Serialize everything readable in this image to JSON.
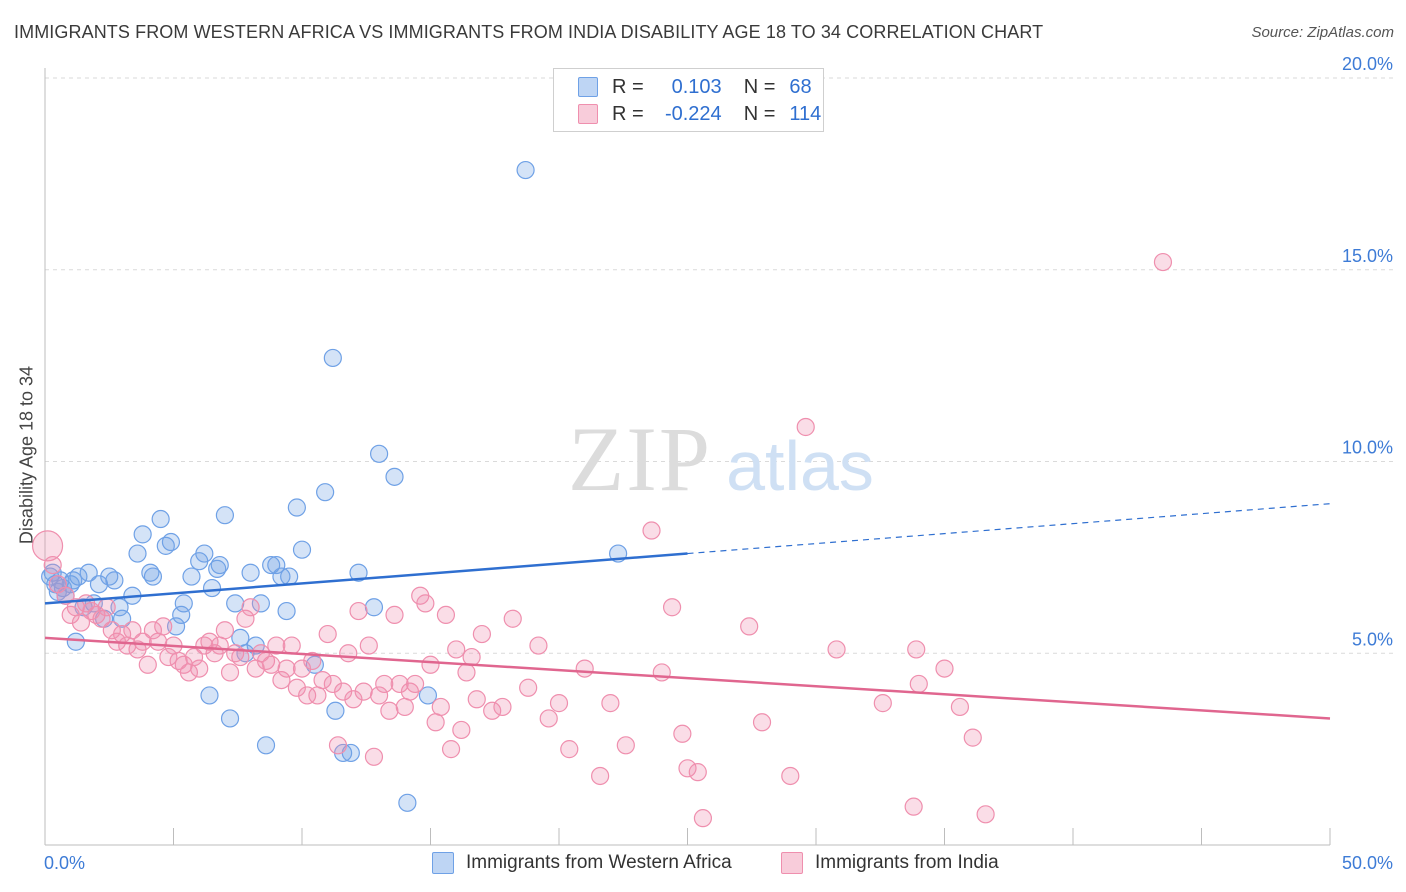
{
  "title": "IMMIGRANTS FROM WESTERN AFRICA VS IMMIGRANTS FROM INDIA DISABILITY AGE 18 TO 34 CORRELATION CHART",
  "source": "Source: ZipAtlas.com",
  "watermark": {
    "zip": "ZIP",
    "atlas": "atlas"
  },
  "legend": {
    "rows": [
      {
        "r_label": "R =",
        "r_value": "0.103",
        "n_label": "N =",
        "n_value": "68",
        "color": "#6fa1e6"
      },
      {
        "r_label": "R =",
        "r_value": "-0.224",
        "n_label": "N =",
        "n_value": "114",
        "color": "#ef8fae"
      }
    ]
  },
  "chart_data": {
    "type": "scatter",
    "title": "IMMIGRANTS FROM WESTERN AFRICA VS IMMIGRANTS FROM INDIA DISABILITY AGE 18 TO 34 CORRELATION CHART",
    "xlabel": "",
    "ylabel": "Disability Age 18 to 34",
    "xlim": [
      0,
      50
    ],
    "ylim": [
      0,
      20
    ],
    "x_tick_labels": [
      "0.0%",
      "50.0%"
    ],
    "y_ticks": [
      5,
      10,
      15,
      20
    ],
    "y_tick_labels": [
      "5.0%",
      "10.0%",
      "15.0%",
      "20.0%"
    ],
    "grid": true,
    "legend_position": "bottom",
    "series": [
      {
        "name": "Immigrants from Western Africa",
        "color": "#6fa1e6",
        "fill": "rgba(111,161,230,0.3)",
        "line_color": "#2f6fd0",
        "trend": {
          "x0": 0,
          "y0": 6.3,
          "x1": 25,
          "y1": 7.6,
          "dashed_to_x": 50,
          "dashed_to_y": 8.9
        },
        "points": [
          [
            0.2,
            7.0
          ],
          [
            0.4,
            6.8
          ],
          [
            0.5,
            6.6
          ],
          [
            0.6,
            6.9
          ],
          [
            0.8,
            6.5
          ],
          [
            1.0,
            6.8
          ],
          [
            1.2,
            5.3
          ],
          [
            1.3,
            7.0
          ],
          [
            1.5,
            6.2
          ],
          [
            1.7,
            7.1
          ],
          [
            1.9,
            6.3
          ],
          [
            2.1,
            6.8
          ],
          [
            2.3,
            5.9
          ],
          [
            2.5,
            7.0
          ],
          [
            2.7,
            6.9
          ],
          [
            2.9,
            6.2
          ],
          [
            3.0,
            5.9
          ],
          [
            3.4,
            6.5
          ],
          [
            3.6,
            7.6
          ],
          [
            3.8,
            8.1
          ],
          [
            4.1,
            7.1
          ],
          [
            4.2,
            7.0
          ],
          [
            4.5,
            8.5
          ],
          [
            4.7,
            7.8
          ],
          [
            4.9,
            7.9
          ],
          [
            5.1,
            5.7
          ],
          [
            5.3,
            6.0
          ],
          [
            5.4,
            6.3
          ],
          [
            5.7,
            7.0
          ],
          [
            6.0,
            7.4
          ],
          [
            6.2,
            7.6
          ],
          [
            6.4,
            3.9
          ],
          [
            6.5,
            6.7
          ],
          [
            6.7,
            7.2
          ],
          [
            6.8,
            7.3
          ],
          [
            7.0,
            8.6
          ],
          [
            7.2,
            3.3
          ],
          [
            7.4,
            6.3
          ],
          [
            7.6,
            5.4
          ],
          [
            7.8,
            5.0
          ],
          [
            8.0,
            7.1
          ],
          [
            8.2,
            5.2
          ],
          [
            8.4,
            6.3
          ],
          [
            8.6,
            2.6
          ],
          [
            8.8,
            7.3
          ],
          [
            9.0,
            7.3
          ],
          [
            9.2,
            7.0
          ],
          [
            9.4,
            6.1
          ],
          [
            9.5,
            7.0
          ],
          [
            9.8,
            8.8
          ],
          [
            10.0,
            7.7
          ],
          [
            10.5,
            4.7
          ],
          [
            10.9,
            9.2
          ],
          [
            11.2,
            12.7
          ],
          [
            11.3,
            3.5
          ],
          [
            11.6,
            2.4
          ],
          [
            11.9,
            2.4
          ],
          [
            12.2,
            7.1
          ],
          [
            12.8,
            6.2
          ],
          [
            13.0,
            10.2
          ],
          [
            13.6,
            9.6
          ],
          [
            14.1,
            1.1
          ],
          [
            14.9,
            3.9
          ],
          [
            18.7,
            17.6
          ],
          [
            22.3,
            7.6
          ],
          [
            0.3,
            7.1
          ],
          [
            0.7,
            6.7
          ],
          [
            1.1,
            6.9
          ]
        ]
      },
      {
        "name": "Immigrants from India",
        "color": "#ef8fae",
        "fill": "rgba(239,143,174,0.3)",
        "line_color": "#e0668f",
        "trend": {
          "x0": 0,
          "y0": 5.4,
          "x1": 50,
          "y1": 3.3
        },
        "points": [
          [
            0.1,
            7.8
          ],
          [
            0.3,
            7.3
          ],
          [
            0.5,
            6.8
          ],
          [
            0.8,
            6.5
          ],
          [
            1.0,
            6.0
          ],
          [
            1.2,
            6.2
          ],
          [
            1.4,
            5.8
          ],
          [
            1.6,
            6.3
          ],
          [
            1.8,
            6.1
          ],
          [
            2.0,
            6.0
          ],
          [
            2.2,
            5.9
          ],
          [
            2.4,
            6.2
          ],
          [
            2.6,
            5.6
          ],
          [
            2.8,
            5.3
          ],
          [
            3.0,
            5.5
          ],
          [
            3.2,
            5.2
          ],
          [
            3.4,
            5.6
          ],
          [
            3.6,
            5.1
          ],
          [
            3.8,
            5.3
          ],
          [
            4.0,
            4.7
          ],
          [
            4.2,
            5.6
          ],
          [
            4.4,
            5.3
          ],
          [
            4.6,
            5.7
          ],
          [
            4.8,
            4.9
          ],
          [
            5.0,
            5.2
          ],
          [
            5.2,
            4.8
          ],
          [
            5.4,
            4.7
          ],
          [
            5.6,
            4.5
          ],
          [
            5.8,
            4.9
          ],
          [
            6.0,
            4.6
          ],
          [
            6.2,
            5.2
          ],
          [
            6.4,
            5.3
          ],
          [
            6.6,
            5.0
          ],
          [
            6.8,
            5.2
          ],
          [
            7.0,
            5.6
          ],
          [
            7.2,
            4.5
          ],
          [
            7.4,
            5.0
          ],
          [
            7.6,
            4.9
          ],
          [
            7.8,
            5.9
          ],
          [
            8.0,
            6.2
          ],
          [
            8.2,
            4.6
          ],
          [
            8.4,
            5.0
          ],
          [
            8.6,
            4.8
          ],
          [
            8.8,
            4.7
          ],
          [
            9.0,
            5.2
          ],
          [
            9.2,
            4.3
          ],
          [
            9.4,
            4.6
          ],
          [
            9.6,
            5.2
          ],
          [
            9.8,
            4.1
          ],
          [
            10.0,
            4.6
          ],
          [
            10.2,
            3.9
          ],
          [
            10.4,
            4.8
          ],
          [
            10.6,
            3.9
          ],
          [
            10.8,
            4.3
          ],
          [
            11.0,
            5.5
          ],
          [
            11.2,
            4.2
          ],
          [
            11.4,
            2.6
          ],
          [
            11.6,
            4.0
          ],
          [
            11.8,
            5.0
          ],
          [
            12.0,
            3.8
          ],
          [
            12.2,
            6.1
          ],
          [
            12.4,
            4.0
          ],
          [
            12.6,
            5.2
          ],
          [
            12.8,
            2.3
          ],
          [
            13.0,
            3.9
          ],
          [
            13.2,
            4.2
          ],
          [
            13.4,
            3.5
          ],
          [
            13.6,
            6.0
          ],
          [
            13.8,
            4.2
          ],
          [
            14.0,
            3.6
          ],
          [
            14.2,
            4.0
          ],
          [
            14.4,
            4.2
          ],
          [
            14.6,
            6.5
          ],
          [
            14.8,
            6.3
          ],
          [
            15.0,
            4.7
          ],
          [
            15.2,
            3.2
          ],
          [
            15.4,
            3.6
          ],
          [
            15.6,
            6.0
          ],
          [
            15.8,
            2.5
          ],
          [
            16.0,
            5.1
          ],
          [
            16.2,
            3.0
          ],
          [
            16.4,
            4.5
          ],
          [
            16.6,
            4.9
          ],
          [
            16.8,
            3.8
          ],
          [
            17.0,
            5.5
          ],
          [
            17.4,
            3.5
          ],
          [
            17.8,
            3.6
          ],
          [
            18.2,
            5.9
          ],
          [
            18.8,
            4.1
          ],
          [
            19.2,
            5.2
          ],
          [
            19.6,
            3.3
          ],
          [
            20.0,
            3.7
          ],
          [
            20.4,
            2.5
          ],
          [
            21.0,
            4.6
          ],
          [
            21.6,
            1.8
          ],
          [
            22.0,
            3.7
          ],
          [
            22.6,
            2.6
          ],
          [
            23.6,
            8.2
          ],
          [
            24.0,
            4.5
          ],
          [
            24.4,
            6.2
          ],
          [
            24.8,
            2.9
          ],
          [
            25.0,
            2.0
          ],
          [
            25.4,
            1.9
          ],
          [
            25.6,
            0.7
          ],
          [
            27.4,
            5.7
          ],
          [
            27.9,
            3.2
          ],
          [
            29.0,
            1.8
          ],
          [
            29.6,
            10.9
          ],
          [
            30.8,
            5.1
          ],
          [
            32.6,
            3.7
          ],
          [
            33.8,
            1.0
          ],
          [
            33.9,
            5.1
          ],
          [
            34.0,
            4.2
          ],
          [
            35.0,
            4.6
          ],
          [
            35.6,
            3.6
          ],
          [
            36.1,
            2.8
          ],
          [
            36.6,
            0.8
          ],
          [
            43.5,
            15.2
          ]
        ]
      }
    ]
  },
  "bottom_legend": [
    {
      "label": "Immigrants from Western Africa",
      "color": "#6fa1e6"
    },
    {
      "label": "Immigrants from India",
      "color": "#ef8fae"
    }
  ]
}
